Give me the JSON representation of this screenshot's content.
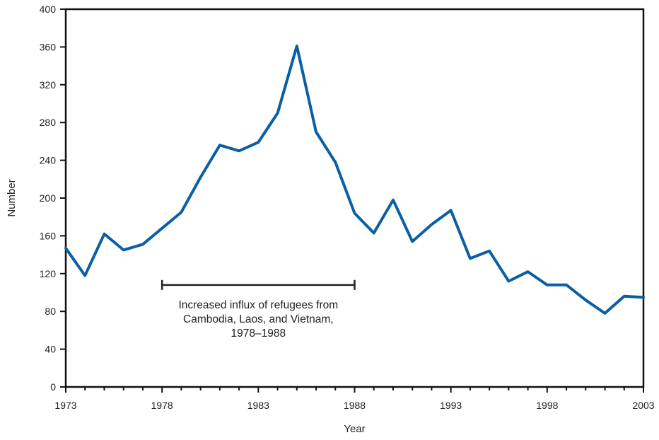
{
  "chart_data": {
    "type": "line",
    "xlabel": "Year",
    "ylabel": "Number",
    "xlim": [
      1973,
      2003
    ],
    "ylim": [
      0,
      400
    ],
    "x_ticks": [
      "1973",
      "1978",
      "1983",
      "1988",
      "1993",
      "1998",
      "2003"
    ],
    "y_ticks": [
      "0",
      "40",
      "80",
      "120",
      "160",
      "200",
      "240",
      "280",
      "320",
      "360",
      "400"
    ],
    "grid": false,
    "legend": "none",
    "series": [
      {
        "color": "#0a5fa3",
        "x": [
          1973,
          1974,
          1975,
          1976,
          1977,
          1978,
          1979,
          1980,
          1981,
          1982,
          1983,
          1984,
          1985,
          1986,
          1987,
          1988,
          1989,
          1990,
          1991,
          1992,
          1993,
          1994,
          1995,
          1996,
          1997,
          1998,
          1999,
          2000,
          2001,
          2002,
          2003
        ],
        "y": [
          147,
          118,
          162,
          145,
          151,
          168,
          185,
          222,
          256,
          250,
          259,
          290,
          361,
          270,
          238,
          184,
          163,
          198,
          154,
          172,
          187,
          136,
          144,
          112,
          122,
          108,
          108,
          92,
          78,
          96,
          95
        ]
      }
    ],
    "annotation": {
      "lines": [
        "Increased influx of refugees from",
        "Cambodia, Laos, and Vietnam,",
        "1978–1988"
      ],
      "range": [
        1978,
        1988
      ],
      "value": 108
    }
  }
}
